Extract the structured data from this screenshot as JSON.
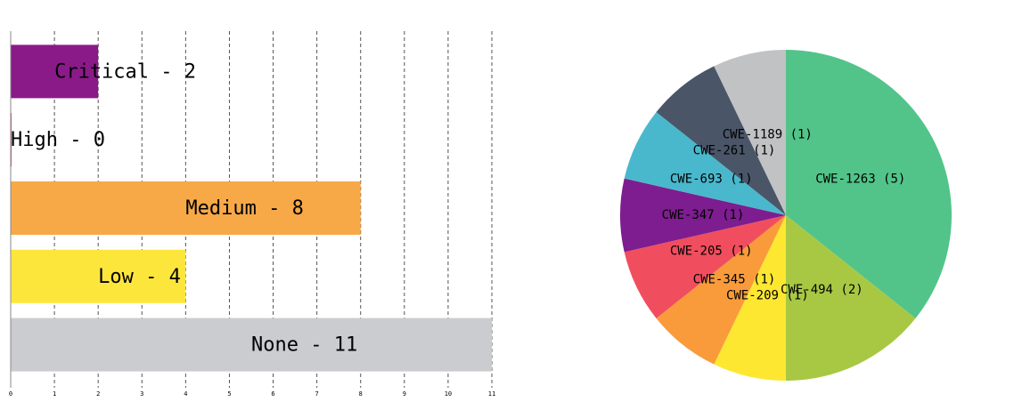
{
  "chart_data": [
    {
      "type": "bar",
      "orientation": "horizontal",
      "categories": [
        "Critical - 2",
        "High - 0",
        "Medium - 8",
        "Low - 4",
        "None - 11"
      ],
      "values": [
        2,
        0,
        8,
        4,
        11
      ],
      "colors": [
        "#8b1a89",
        "#e8455c",
        "#f7a948",
        "#fde63c",
        "#cbcccf"
      ],
      "xlim": [
        0,
        11
      ],
      "xticks": [
        0,
        1,
        2,
        3,
        4,
        5,
        6,
        7,
        8,
        9,
        10,
        11
      ],
      "grid": true
    },
    {
      "type": "pie",
      "categories": [
        "CWE-1263 (5)",
        "CWE-494 (2)",
        "CWE-209 (1)",
        "CWE-345 (1)",
        "CWE-205 (1)",
        "CWE-347 (1)",
        "CWE-693 (1)",
        "CWE-261 (1)",
        "CWE-1189 (1)"
      ],
      "values": [
        5,
        2,
        1,
        1,
        1,
        1,
        1,
        1,
        1
      ],
      "colors": [
        "#52c48a",
        "#a8c843",
        "#fde731",
        "#f99b3b",
        "#f04e5e",
        "#7d1d8f",
        "#4ab8cc",
        "#4a5568",
        "#c1c2c4"
      ]
    }
  ]
}
